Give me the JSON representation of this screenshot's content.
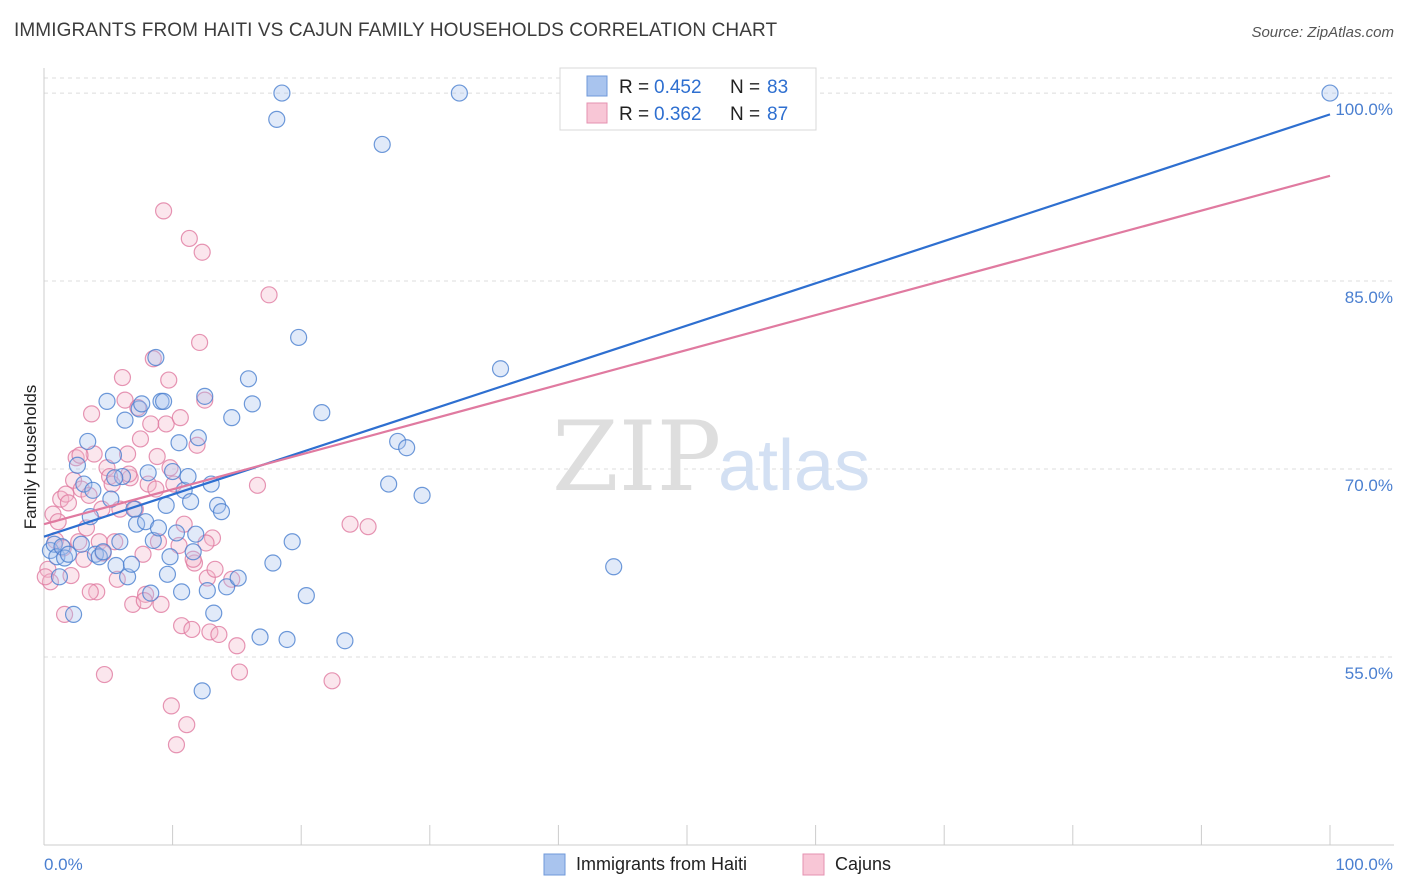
{
  "title": "IMMIGRANTS FROM HAITI VS CAJUN FAMILY HOUSEHOLDS CORRELATION CHART",
  "source": "Source: ZipAtlas.com",
  "watermark": {
    "zip": "ZIP",
    "atlas": "atlas"
  },
  "colors": {
    "blue": "#4a7fd0",
    "blue_fill": "#a9c4ee",
    "pink": "#e07aa0",
    "pink_fill": "#f4b8cc",
    "grid": "#dcdcdc"
  },
  "legend": {
    "items": [
      {
        "r_label": "R =",
        "r_value": "0.452",
        "n_label": "N =",
        "n_value": "83"
      },
      {
        "r_label": "R =",
        "r_value": "0.362",
        "n_label": "N =",
        "n_value": "87"
      }
    ]
  },
  "chart_data": {
    "type": "scatter",
    "ylabel": "Family Households",
    "xlim": [
      0,
      100
    ],
    "ylim": [
      40,
      102
    ],
    "x_tick_labels": [
      "0.0%",
      "100.0%"
    ],
    "y_ticks": [
      55,
      70,
      85,
      100
    ],
    "y_tick_labels": [
      "55.0%",
      "70.0%",
      "85.0%",
      "100.0%"
    ],
    "grid": true,
    "legend_position": "top-center",
    "series": [
      {
        "name": "Immigrants from Haiti",
        "trend": {
          "x": [
            0,
            100
          ],
          "y": [
            64.6,
            98.3
          ]
        },
        "points": [
          [
            0.5,
            63.5
          ],
          [
            0.8,
            64
          ],
          [
            1,
            63
          ],
          [
            1.2,
            61.4
          ],
          [
            1.4,
            63.8
          ],
          [
            1.6,
            62.9
          ],
          [
            1.9,
            63.2
          ],
          [
            2.3,
            58.4
          ],
          [
            2.6,
            70.3
          ],
          [
            2.9,
            64
          ],
          [
            3.1,
            68.8
          ],
          [
            3.4,
            72.2
          ],
          [
            3.6,
            66.2
          ],
          [
            3.8,
            68.3
          ],
          [
            4,
            63.2
          ],
          [
            4.3,
            63
          ],
          [
            4.6,
            63.4
          ],
          [
            4.9,
            75.4
          ],
          [
            5.2,
            67.6
          ],
          [
            5.4,
            71.1
          ],
          [
            5.6,
            62.3
          ],
          [
            5.9,
            64.2
          ],
          [
            6.1,
            69.4
          ],
          [
            6.3,
            73.9
          ],
          [
            6.5,
            61.4
          ],
          [
            6.8,
            62.4
          ],
          [
            7,
            66.8
          ],
          [
            7.2,
            65.6
          ],
          [
            7.4,
            74.8
          ],
          [
            7.6,
            75.2
          ],
          [
            7.9,
            65.8
          ],
          [
            8.1,
            69.7
          ],
          [
            8.3,
            60.1
          ],
          [
            8.5,
            64.3
          ],
          [
            8.7,
            78.9
          ],
          [
            8.9,
            65.3
          ],
          [
            9.1,
            75.4
          ],
          [
            9.3,
            75.4
          ],
          [
            9.6,
            61.6
          ],
          [
            9.8,
            63
          ],
          [
            10,
            69.8
          ],
          [
            10.3,
            64.9
          ],
          [
            10.5,
            72.1
          ],
          [
            10.7,
            60.2
          ],
          [
            10.9,
            68.3
          ],
          [
            11.2,
            69.4
          ],
          [
            11.4,
            67.4
          ],
          [
            11.6,
            63.4
          ],
          [
            11.8,
            64.8
          ],
          [
            12,
            72.5
          ],
          [
            12.3,
            52.3
          ],
          [
            12.5,
            75.8
          ],
          [
            12.7,
            60.3
          ],
          [
            13,
            68.8
          ],
          [
            13.2,
            58.5
          ],
          [
            13.5,
            67.1
          ],
          [
            13.8,
            66.6
          ],
          [
            14.2,
            60.6
          ],
          [
            14.6,
            74.1
          ],
          [
            15.1,
            61.3
          ],
          [
            15.9,
            77.2
          ],
          [
            16.2,
            75.2
          ],
          [
            16.8,
            56.6
          ],
          [
            17.8,
            62.5
          ],
          [
            18.1,
            97.9
          ],
          [
            18.5,
            100
          ],
          [
            18.9,
            56.4
          ],
          [
            19.3,
            64.2
          ],
          [
            19.8,
            80.5
          ],
          [
            20.4,
            59.9
          ],
          [
            21.6,
            74.5
          ],
          [
            23.4,
            56.3
          ],
          [
            26.3,
            95.9
          ],
          [
            26.8,
            68.8
          ],
          [
            27.5,
            72.2
          ],
          [
            28.2,
            71.7
          ],
          [
            29.4,
            67.9
          ],
          [
            32.3,
            100
          ],
          [
            35.5,
            78
          ],
          [
            44.3,
            62.2
          ],
          [
            100,
            100
          ],
          [
            5.5,
            69.3
          ],
          [
            9.5,
            67.1
          ]
        ]
      },
      {
        "name": "Cajuns",
        "trend": {
          "x": [
            0,
            100
          ],
          "y": [
            65.6,
            93.4
          ]
        },
        "points": [
          [
            0.3,
            62
          ],
          [
            0.5,
            61
          ],
          [
            0.7,
            66.4
          ],
          [
            0.9,
            64.3
          ],
          [
            1.1,
            65.8
          ],
          [
            1.3,
            67.6
          ],
          [
            1.5,
            63.7
          ],
          [
            1.7,
            68
          ],
          [
            1.9,
            67.3
          ],
          [
            2.1,
            61.5
          ],
          [
            2.3,
            69.1
          ],
          [
            2.5,
            70.9
          ],
          [
            2.7,
            64.2
          ],
          [
            2.9,
            68.4
          ],
          [
            3.1,
            62.8
          ],
          [
            3.3,
            65.3
          ],
          [
            3.5,
            67.9
          ],
          [
            3.7,
            74.4
          ],
          [
            3.9,
            71.2
          ],
          [
            4.1,
            60.2
          ],
          [
            4.3,
            64.2
          ],
          [
            4.5,
            66.8
          ],
          [
            4.7,
            53.6
          ],
          [
            4.9,
            70.1
          ],
          [
            5.1,
            69.4
          ],
          [
            5.3,
            68.8
          ],
          [
            5.5,
            64.2
          ],
          [
            5.7,
            61.2
          ],
          [
            5.9,
            66.8
          ],
          [
            6.1,
            77.3
          ],
          [
            6.3,
            75.5
          ],
          [
            6.5,
            71.2
          ],
          [
            6.7,
            69.3
          ],
          [
            6.9,
            59.2
          ],
          [
            7.1,
            66.8
          ],
          [
            7.3,
            74.9
          ],
          [
            7.5,
            72.4
          ],
          [
            7.7,
            63.2
          ],
          [
            7.9,
            60
          ],
          [
            8.1,
            68.8
          ],
          [
            8.3,
            73.6
          ],
          [
            8.5,
            78.8
          ],
          [
            8.7,
            68.4
          ],
          [
            8.9,
            64.2
          ],
          [
            9.1,
            59.2
          ],
          [
            9.3,
            90.6
          ],
          [
            9.5,
            73.6
          ],
          [
            9.7,
            77.1
          ],
          [
            9.9,
            51.1
          ],
          [
            10.1,
            68.8
          ],
          [
            10.3,
            48
          ],
          [
            10.5,
            63.9
          ],
          [
            10.7,
            57.5
          ],
          [
            10.9,
            65.6
          ],
          [
            11.1,
            49.6
          ],
          [
            11.3,
            88.4
          ],
          [
            11.5,
            57.2
          ],
          [
            11.7,
            62.5
          ],
          [
            11.9,
            71.9
          ],
          [
            12.1,
            80.1
          ],
          [
            12.3,
            87.3
          ],
          [
            12.5,
            75.5
          ],
          [
            12.7,
            61.3
          ],
          [
            12.9,
            57
          ],
          [
            13.1,
            64.5
          ],
          [
            13.3,
            62
          ],
          [
            15,
            55.9
          ],
          [
            15.2,
            53.8
          ],
          [
            16.6,
            68.7
          ],
          [
            17.5,
            83.9
          ],
          [
            22.4,
            53.1
          ],
          [
            23.8,
            65.6
          ],
          [
            25.2,
            65.4
          ],
          [
            0.1,
            61.4
          ],
          [
            1.6,
            58.4
          ],
          [
            2.8,
            71.1
          ],
          [
            3.6,
            60.2
          ],
          [
            4.6,
            63.3
          ],
          [
            6.6,
            69.6
          ],
          [
            7.8,
            59.5
          ],
          [
            8.8,
            71
          ],
          [
            9.8,
            70.1
          ],
          [
            10.6,
            74.1
          ],
          [
            11.6,
            62.8
          ],
          [
            12.6,
            64.1
          ],
          [
            13.6,
            56.8
          ],
          [
            14.6,
            61.2
          ]
        ]
      }
    ]
  }
}
